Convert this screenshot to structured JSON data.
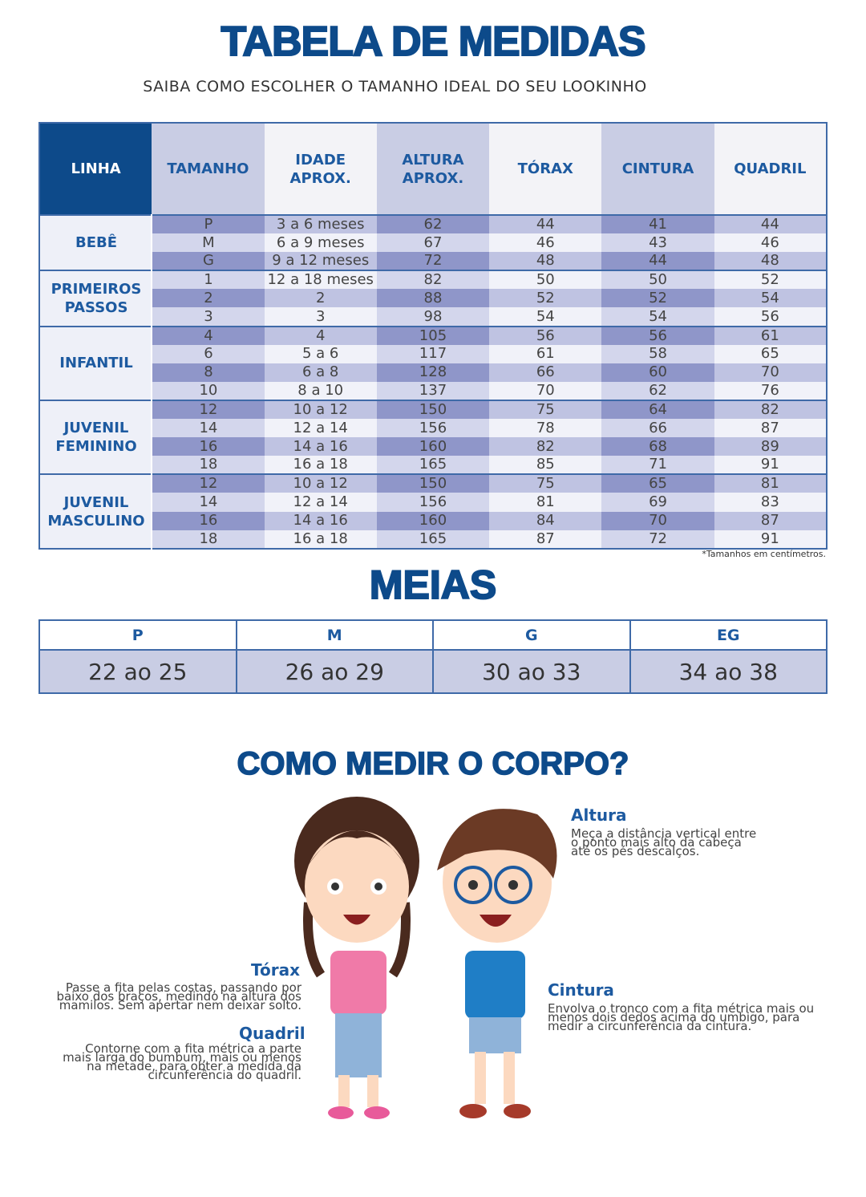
{
  "header": {
    "title": "TABELA DE MEDIDAS",
    "subtitle": "SAIBA COMO ESCOLHER O TAMANHO IDEAL DO SEU LOOKINHO"
  },
  "table": {
    "columns": [
      "LINHA",
      "TAMANHO",
      "IDADE APROX.",
      "ALTURA APROX.",
      "TÓRAX",
      "CINTURA",
      "QUADRIL"
    ],
    "groups": [
      {
        "name": "BEBÊ",
        "rows": [
          [
            "P",
            "3 a 6 meses",
            "62",
            "44",
            "41",
            "44"
          ],
          [
            "M",
            "6 a 9 meses",
            "67",
            "46",
            "43",
            "46"
          ],
          [
            "G",
            "9 a 12 meses",
            "72",
            "48",
            "44",
            "48"
          ]
        ]
      },
      {
        "name": "PRIMEIROS PASSOS",
        "rows": [
          [
            "1",
            "12 a 18 meses",
            "82",
            "50",
            "50",
            "52"
          ],
          [
            "2",
            "2",
            "88",
            "52",
            "52",
            "54"
          ],
          [
            "3",
            "3",
            "98",
            "54",
            "54",
            "56"
          ]
        ]
      },
      {
        "name": "INFANTIL",
        "rows": [
          [
            "4",
            "4",
            "105",
            "56",
            "56",
            "61"
          ],
          [
            "6",
            "5 a 6",
            "117",
            "61",
            "58",
            "65"
          ],
          [
            "8",
            "6 a 8",
            "128",
            "66",
            "60",
            "70"
          ],
          [
            "10",
            "8 a 10",
            "137",
            "70",
            "62",
            "76"
          ]
        ]
      },
      {
        "name": "JUVENIL FEMININO",
        "rows": [
          [
            "12",
            "10 a 12",
            "150",
            "75",
            "64",
            "82"
          ],
          [
            "14",
            "12 a 14",
            "156",
            "78",
            "66",
            "87"
          ],
          [
            "16",
            "14 a 16",
            "160",
            "82",
            "68",
            "89"
          ],
          [
            "18",
            "16 a 18",
            "165",
            "85",
            "71",
            "91"
          ]
        ]
      },
      {
        "name": "JUVENIL MASCULINO",
        "rows": [
          [
            "12",
            "10 a 12",
            "150",
            "75",
            "65",
            "81"
          ],
          [
            "14",
            "12 a 14",
            "156",
            "81",
            "69",
            "83"
          ],
          [
            "16",
            "14 a 16",
            "160",
            "84",
            "70",
            "87"
          ],
          [
            "18",
            "16 a 18",
            "165",
            "87",
            "72",
            "91"
          ]
        ]
      }
    ],
    "note": "*Tamanhos em centímetros."
  },
  "meias": {
    "title": "MEIAS",
    "sizes": [
      "P",
      "M",
      "G",
      "EG"
    ],
    "ranges": [
      "22 ao 25",
      "26 ao 29",
      "30 ao 33",
      "34 ao 38"
    ]
  },
  "como": {
    "title": "COMO MEDIR O CORPO?",
    "altura": {
      "label": "Altura",
      "text": "Meça a distância vertical entre o ponto mais alto da cabeça até os pés descalços."
    },
    "torax": {
      "label": "Tórax",
      "text": "Passe a fita pelas costas, passando por baixo dos braços, medindo na altura dos mamilos. Sem apertar nem deixar solto."
    },
    "quadril": {
      "label": "Quadril",
      "text": "Contorne com a fita métrica a parte mais larga do bumbum, mais ou menos na metade, para obter a medida da circunferência do quadril."
    },
    "cintura": {
      "label": "Cintura",
      "text": "Envolva o tronco com a fita métrica mais ou menos dois dedos acima do umbigo, para medir a circunferência da cintura."
    }
  },
  "colors": {
    "brand": "#0d4a8a",
    "accent": "#1d5aa0",
    "stripe_dark": "#8f96c9",
    "stripe_light": "#d3d6ec"
  }
}
